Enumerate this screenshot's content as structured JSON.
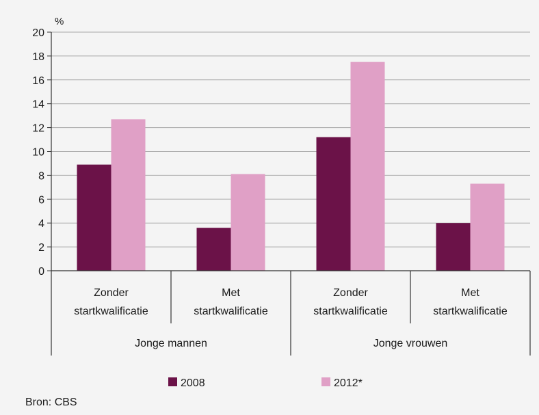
{
  "chart_data": {
    "type": "bar",
    "y_unit": "%",
    "ylim": [
      0,
      20
    ],
    "y_ticks": [
      0,
      2,
      4,
      6,
      8,
      10,
      12,
      14,
      16,
      18,
      20
    ],
    "grid": true,
    "groups": [
      {
        "label": "Jonge mannen",
        "categories": [
          [
            "Zonder",
            "startkwalificatie"
          ],
          [
            "Met",
            "startkwalificatie"
          ]
        ]
      },
      {
        "label": "Jonge vrouwen",
        "categories": [
          [
            "Zonder",
            "startkwalificatie"
          ],
          [
            "Met",
            "startkwalificatie"
          ]
        ]
      }
    ],
    "series": [
      {
        "name": "2008",
        "color": "#6b1248",
        "values": [
          8.9,
          3.6,
          11.2,
          4.0
        ]
      },
      {
        "name": "2012*",
        "color": "#e0a0c6",
        "values": [
          12.7,
          8.1,
          17.5,
          7.3
        ]
      }
    ],
    "legend_position": "bottom",
    "source": "Bron: CBS"
  }
}
